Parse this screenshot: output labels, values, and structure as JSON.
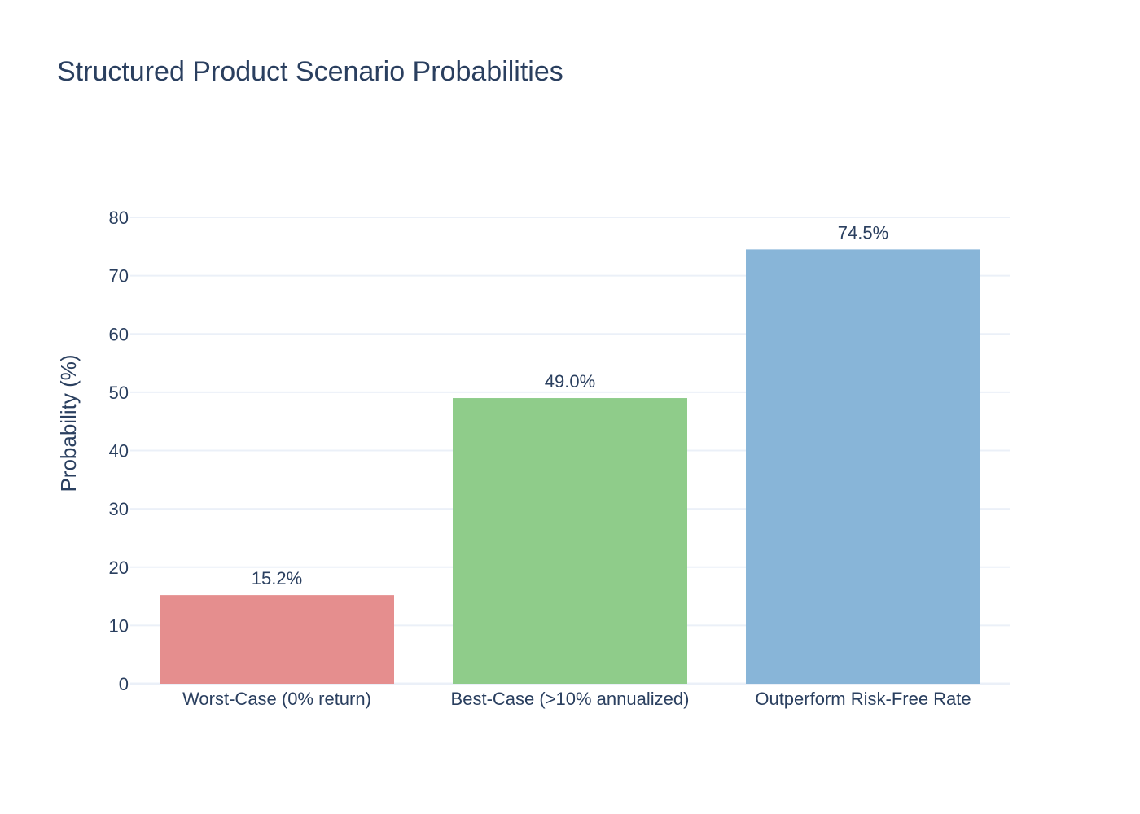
{
  "chart_data": {
    "type": "bar",
    "title": "Structured Product Scenario Probabilities",
    "xlabel": "",
    "ylabel": "Probability (%)",
    "categories": [
      "Worst-Case (0% return)",
      "Best-Case (>10% annualized)",
      "Outperform Risk-Free Rate"
    ],
    "values": [
      15.2,
      49.0,
      74.5
    ],
    "value_labels": [
      "15.2%",
      "49.0%",
      "74.5%"
    ],
    "bar_colors": [
      "#e58e8e",
      "#8fcc8a",
      "#88b5d8"
    ],
    "ylim": [
      0,
      80
    ],
    "yticks": [
      0,
      10,
      20,
      30,
      40,
      50,
      60,
      70,
      80
    ],
    "grid": true,
    "legend": "none"
  },
  "colors": {
    "text": "#2a3f5f",
    "grid": "#ebf0f8",
    "zeroline": "#ebf0f8",
    "background": "#ffffff"
  }
}
